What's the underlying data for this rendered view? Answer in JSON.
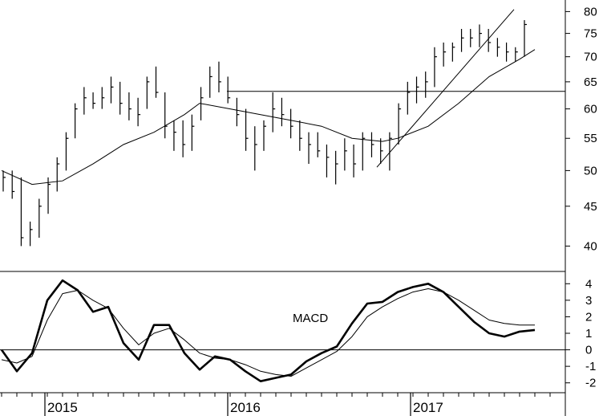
{
  "chart_data": [
    {
      "type": "ohlc",
      "yscale": "log",
      "ylim": [
        38,
        82
      ],
      "yticks": [
        40,
        45,
        50,
        55,
        60,
        65,
        70,
        75,
        80
      ],
      "ytick_labels": [
        "40",
        "45",
        "50",
        "55",
        "60",
        "65",
        "70",
        "75",
        "80"
      ],
      "x_start": "2014-10",
      "x_end": "2017-11",
      "xticks": [
        "2015",
        "2016",
        "2017"
      ],
      "moving_average": {
        "x": [
          "2014-10",
          "2014-12",
          "2015-02",
          "2015-04",
          "2015-06",
          "2015-08",
          "2015-10",
          "2015-11",
          "2016-01",
          "2016-03",
          "2016-05",
          "2016-07",
          "2016-09",
          "2016-11",
          "2016-12",
          "2017-02",
          "2017-04",
          "2017-06",
          "2017-08",
          "2017-09"
        ],
        "values": [
          50,
          48,
          48.5,
          51,
          54,
          56,
          59,
          61,
          60,
          59,
          58,
          57,
          55,
          54.5,
          55,
          57,
          61,
          66,
          69.5,
          71.5
        ]
      },
      "weekly_bars": [
        {
          "high": 50,
          "low": 47,
          "close": 49
        },
        {
          "high": 50,
          "low": 46,
          "close": 47
        },
        {
          "high": 49,
          "low": 40,
          "close": 41
        },
        {
          "high": 43,
          "low": 40,
          "close": 42
        },
        {
          "high": 46,
          "low": 41,
          "close": 45
        },
        {
          "high": 49,
          "low": 44,
          "close": 48
        },
        {
          "high": 52,
          "low": 47,
          "close": 51
        },
        {
          "high": 56,
          "low": 50,
          "close": 55
        },
        {
          "high": 61,
          "low": 55,
          "close": 60
        },
        {
          "high": 64,
          "low": 59,
          "close": 62
        },
        {
          "high": 63,
          "low": 60,
          "close": 61
        },
        {
          "high": 64,
          "low": 60,
          "close": 62
        },
        {
          "high": 66,
          "low": 61,
          "close": 64
        },
        {
          "high": 65,
          "low": 59,
          "close": 61
        },
        {
          "high": 63,
          "low": 58,
          "close": 60
        },
        {
          "high": 62,
          "low": 57,
          "close": 59
        },
        {
          "high": 66,
          "low": 60,
          "close": 65
        },
        {
          "high": 68,
          "low": 62,
          "close": 63
        },
        {
          "high": 63,
          "low": 55,
          "close": 57
        },
        {
          "high": 58,
          "low": 53,
          "close": 56
        },
        {
          "high": 58,
          "low": 52,
          "close": 54
        },
        {
          "high": 59,
          "low": 53,
          "close": 57
        },
        {
          "high": 64,
          "low": 58,
          "close": 62
        },
        {
          "high": 68,
          "low": 62,
          "close": 66
        },
        {
          "high": 69,
          "low": 63,
          "close": 65
        },
        {
          "high": 66,
          "low": 61,
          "close": 62
        },
        {
          "high": 62,
          "low": 57,
          "close": 59
        },
        {
          "high": 60,
          "low": 53,
          "close": 55
        },
        {
          "high": 57,
          "low": 50,
          "close": 54
        },
        {
          "high": 58,
          "low": 53,
          "close": 57
        },
        {
          "high": 63,
          "low": 56,
          "close": 60
        },
        {
          "high": 62,
          "low": 57,
          "close": 59
        },
        {
          "high": 60,
          "low": 55,
          "close": 57
        },
        {
          "high": 58,
          "low": 53,
          "close": 55
        },
        {
          "high": 56,
          "low": 51,
          "close": 54
        },
        {
          "high": 56,
          "low": 52,
          "close": 53
        },
        {
          "high": 54,
          "low": 49,
          "close": 52
        },
        {
          "high": 53,
          "low": 48,
          "close": 51
        },
        {
          "high": 55,
          "low": 50,
          "close": 53
        },
        {
          "high": 54,
          "low": 49,
          "close": 51
        },
        {
          "high": 56,
          "low": 50,
          "close": 55
        },
        {
          "high": 56,
          "low": 52,
          "close": 54
        },
        {
          "high": 55,
          "low": 51,
          "close": 53
        },
        {
          "high": 56,
          "low": 50,
          "close": 55
        },
        {
          "high": 61,
          "low": 54,
          "close": 60
        },
        {
          "high": 65,
          "low": 59,
          "close": 63
        },
        {
          "high": 66,
          "low": 61,
          "close": 64
        },
        {
          "high": 67,
          "low": 62,
          "close": 65
        },
        {
          "high": 72,
          "low": 64,
          "close": 70
        },
        {
          "high": 73,
          "low": 68,
          "close": 71
        },
        {
          "high": 73,
          "low": 69,
          "close": 72
        },
        {
          "high": 76,
          "low": 71,
          "close": 74
        },
        {
          "high": 76,
          "low": 72,
          "close": 74
        },
        {
          "high": 77,
          "low": 72,
          "close": 75
        },
        {
          "high": 76,
          "low": 71,
          "close": 73
        },
        {
          "high": 74,
          "low": 70,
          "close": 72
        },
        {
          "high": 73,
          "low": 69,
          "close": 71
        },
        {
          "high": 72,
          "low": 69,
          "close": 71
        },
        {
          "high": 78,
          "low": 70,
          "close": 77
        }
      ],
      "trendline": {
        "x": [
          "2016-10",
          "2017-07"
        ],
        "y": [
          50.5,
          80.5
        ]
      },
      "horizontal_line": {
        "y": 63.2
      }
    },
    {
      "type": "line",
      "label": "MACD",
      "ylim": [
        -2.5,
        4.5
      ],
      "yticks": [
        -2,
        -1,
        0,
        1,
        2,
        3,
        4
      ],
      "ytick_labels": [
        "-2",
        "-1",
        "0",
        "1",
        "2",
        "3",
        "4"
      ],
      "zero_line": true,
      "series": [
        {
          "style": "bold",
          "x": [
            "2014-10",
            "2014-11",
            "2014-12",
            "2015-01",
            "2015-02",
            "2015-03",
            "2015-04",
            "2015-05",
            "2015-06",
            "2015-07",
            "2015-08",
            "2015-09",
            "2015-10",
            "2015-11",
            "2015-12",
            "2016-01",
            "2016-02",
            "2016-03",
            "2016-04",
            "2016-05",
            "2016-06",
            "2016-07",
            "2016-08",
            "2016-09",
            "2016-10",
            "2016-11",
            "2016-12",
            "2017-01",
            "2017-02",
            "2017-03",
            "2017-04",
            "2017-05",
            "2017-06",
            "2017-07",
            "2017-08",
            "2017-09"
          ],
          "values": [
            0.0,
            -1.3,
            -0.2,
            3.0,
            4.2,
            3.6,
            2.3,
            2.6,
            0.4,
            -0.6,
            1.5,
            1.5,
            -0.2,
            -1.2,
            -0.4,
            -0.6,
            -1.3,
            -1.9,
            -1.7,
            -1.5,
            -0.7,
            -0.2,
            0.2,
            1.6,
            2.8,
            2.9,
            3.5,
            3.8,
            4.0,
            3.5,
            2.6,
            1.7,
            1.0,
            0.8,
            1.1,
            1.2
          ]
        },
        {
          "style": "thin",
          "x": [
            "2014-10",
            "2014-11",
            "2014-12",
            "2015-01",
            "2015-02",
            "2015-03",
            "2015-04",
            "2015-05",
            "2015-06",
            "2015-07",
            "2015-08",
            "2015-09",
            "2015-10",
            "2015-11",
            "2015-12",
            "2016-01",
            "2016-02",
            "2016-03",
            "2016-04",
            "2016-05",
            "2016-06",
            "2016-07",
            "2016-08",
            "2016-09",
            "2016-10",
            "2016-11",
            "2016-12",
            "2017-01",
            "2017-02",
            "2017-03",
            "2017-04",
            "2017-05",
            "2017-06",
            "2017-07",
            "2017-08",
            "2017-09"
          ],
          "values": [
            -0.6,
            -0.8,
            -0.4,
            1.8,
            3.4,
            3.6,
            3.0,
            2.5,
            1.3,
            0.3,
            1.0,
            1.3,
            0.6,
            -0.2,
            -0.5,
            -0.6,
            -0.9,
            -1.3,
            -1.5,
            -1.6,
            -1.1,
            -0.6,
            -0.1,
            0.8,
            2.0,
            2.6,
            3.1,
            3.5,
            3.7,
            3.5,
            3.0,
            2.4,
            1.8,
            1.6,
            1.5,
            1.5
          ]
        }
      ]
    }
  ]
}
